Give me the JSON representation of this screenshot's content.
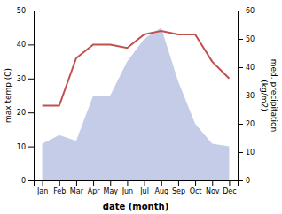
{
  "chart_data": {
    "type": "line",
    "categories": [
      "Jan",
      "Feb",
      "Mar",
      "Apr",
      "May",
      "Jun",
      "Jul",
      "Aug",
      "Sep",
      "Oct",
      "Nov",
      "Dec"
    ],
    "xlabel": "date (month)",
    "ylabel": "max temp (C)",
    "y2label": "med. precipitation\n(kg/m2)",
    "ylim": [
      0,
      50
    ],
    "yticks": [
      0,
      10,
      20,
      30,
      40,
      50
    ],
    "y2lim": [
      0,
      60
    ],
    "y2ticks": [
      0,
      10,
      20,
      30,
      40,
      50,
      60
    ],
    "grid": false,
    "series": [
      {
        "type": "area",
        "axis": "y2",
        "color": "#c5cce8",
        "values": [
          13,
          16,
          14,
          30,
          30,
          42,
          50,
          54,
          35,
          20,
          13,
          12
        ]
      },
      {
        "type": "line",
        "color": "#c0504d",
        "values": [
          22,
          22,
          36,
          40,
          40,
          39,
          43,
          44,
          43,
          43,
          35,
          30
        ]
      }
    ]
  }
}
